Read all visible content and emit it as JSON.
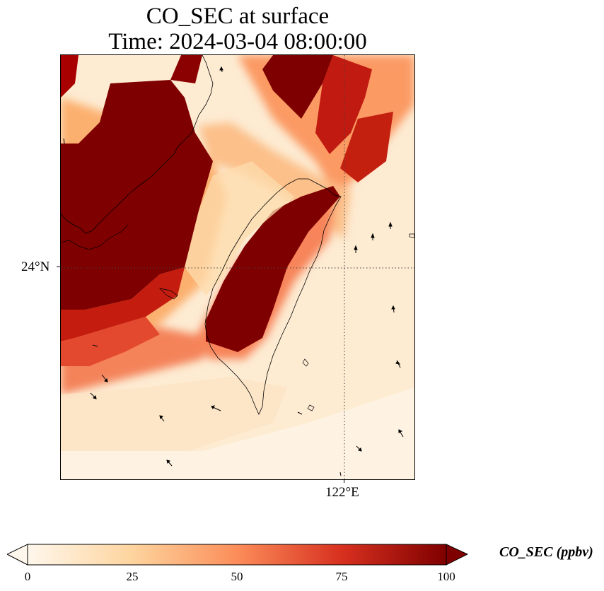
{
  "title": {
    "line1": "CO_SEC at surface",
    "line2": "Time: 2024-03-04 08:00:00"
  },
  "map": {
    "lat_gridline_label": "24°N",
    "lon_gridline_label": "122°E",
    "field": "CO_SEC",
    "region": "Taiwan Strait",
    "icons": [
      "coastline",
      "wind-vector-arrows",
      "dotted-gridlines"
    ]
  },
  "colorbar": {
    "title": "CO_SEC (ppbv)",
    "tick_labels": [
      "0",
      "25",
      "50",
      "75",
      "100"
    ],
    "min": 0,
    "max": 100,
    "extend": "both",
    "colormap": "OrRd",
    "colors": [
      "#fff7ec",
      "#fdd49e",
      "#fc8d59",
      "#d7301f",
      "#7f0000"
    ]
  }
}
